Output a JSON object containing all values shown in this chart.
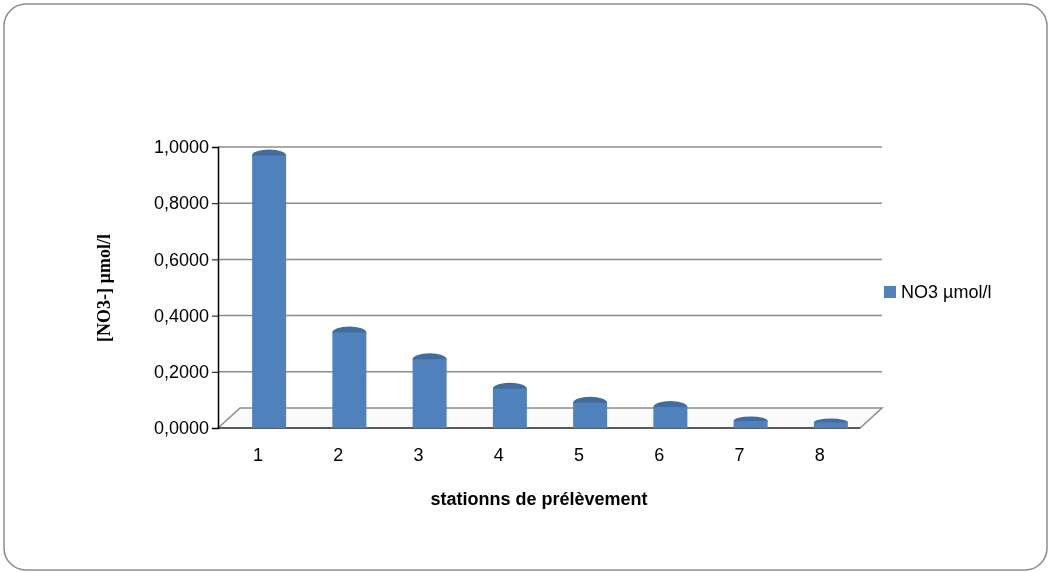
{
  "chart_data": {
    "type": "bar",
    "categories": [
      "1",
      "2",
      "3",
      "4",
      "5",
      "6",
      "7",
      "8"
    ],
    "series": [
      {
        "name": "NO3 µmol/l",
        "color": "#4f81bd",
        "values": [
          0.97,
          0.34,
          0.245,
          0.14,
          0.09,
          0.075,
          0.025,
          0.02
        ]
      }
    ],
    "xlabel": "stationns de prélèvement",
    "ylabel": "[NO3-]  µmol/l",
    "ylim": [
      0,
      1
    ],
    "yticks": [
      {
        "value": 0,
        "label": "0,0000"
      },
      {
        "value": 0.2,
        "label": "0,2000"
      },
      {
        "value": 0.4,
        "label": "0,4000"
      },
      {
        "value": 0.6,
        "label": "0,6000"
      },
      {
        "value": 0.8,
        "label": "0,8000"
      },
      {
        "value": 1,
        "label": "1,0000"
      }
    ],
    "grid": "y",
    "legend": "right"
  }
}
